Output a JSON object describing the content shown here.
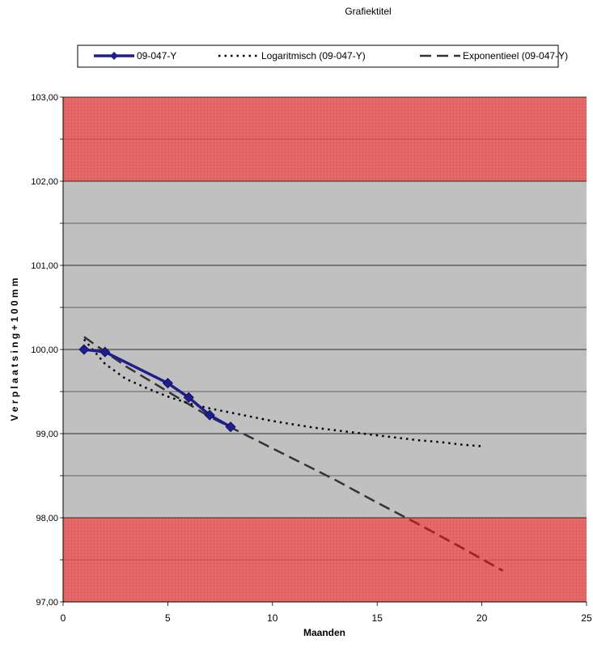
{
  "chart_data": {
    "type": "line",
    "title": "Grafiektitel",
    "xlabel": "Maanden",
    "ylabel": "V e r p l a a t s i n g  + 1 0 0 m m",
    "xlim": [
      0,
      25
    ],
    "ylim": [
      97,
      103
    ],
    "x_ticks": [
      0,
      5,
      10,
      15,
      20,
      25
    ],
    "x_tick_labels": [
      "0",
      "5",
      "10",
      "15",
      "20",
      "25"
    ],
    "y_ticks": [
      97,
      98,
      99,
      100,
      101,
      102,
      103
    ],
    "y_tick_labels": [
      "97,00",
      "98,00",
      "99,00",
      "100,00",
      "101,00",
      "102,00",
      "103,00"
    ],
    "y_minor_step": 0.5,
    "grid": "horizontal",
    "legend_position": "top",
    "bands": [
      {
        "name": "alarm-upper",
        "from": 102,
        "to": 103,
        "color": "#e86262"
      },
      {
        "name": "alarm-lower",
        "from": 97,
        "to": 98,
        "color": "#e86262"
      }
    ],
    "plot_background": "#c0c0c0",
    "series": [
      {
        "name": "09-047-Y",
        "style": "solid-diamond",
        "color": "#1f1f8c",
        "x": [
          1,
          2,
          5,
          6,
          7,
          8
        ],
        "y": [
          100.0,
          99.97,
          99.6,
          99.43,
          99.22,
          99.08
        ]
      },
      {
        "name": "Logaritmisch (09-047-Y)",
        "style": "dotted",
        "color": "#000000",
        "x": [
          1,
          2,
          3,
          4,
          5,
          6,
          7,
          8,
          9,
          10,
          11,
          12,
          13,
          14,
          15,
          16,
          17,
          18,
          19,
          20
        ],
        "y": [
          100.12,
          99.83,
          99.65,
          99.54,
          99.44,
          99.36,
          99.3,
          99.25,
          99.2,
          99.15,
          99.11,
          99.07,
          99.04,
          99.01,
          98.98,
          98.95,
          98.92,
          98.9,
          98.87,
          98.85
        ]
      },
      {
        "name": "Exponentieel (09-047-Y)",
        "style": "dashed",
        "color": "#333333",
        "x": [
          1,
          3,
          5,
          7,
          9,
          11,
          13,
          15,
          17,
          19,
          21
        ],
        "y": [
          100.15,
          99.8,
          99.5,
          99.2,
          98.95,
          98.7,
          98.45,
          98.18,
          97.92,
          97.65,
          97.37
        ]
      }
    ]
  }
}
